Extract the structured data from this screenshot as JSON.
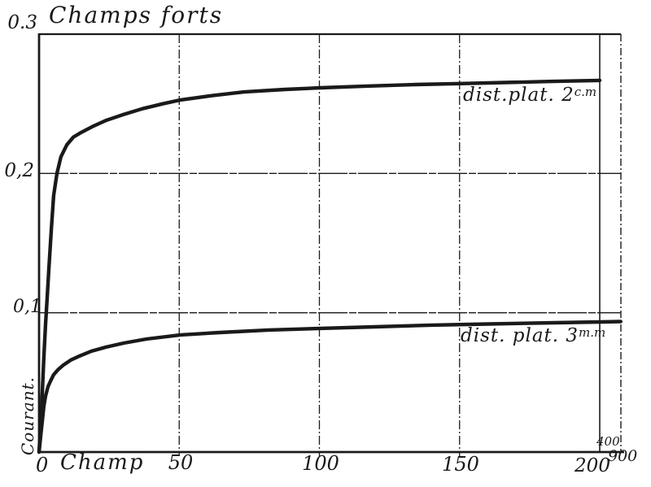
{
  "chart_data": {
    "type": "line",
    "title": "Champs forts",
    "xlabel": "Champ",
    "ylabel": "Courant.",
    "xlim": [
      0,
      207.5
    ],
    "ylim": [
      0,
      0.3
    ],
    "grid": true,
    "legend_position": "labels-on-curves",
    "x_gridlines": [
      50,
      100,
      150,
      200
    ],
    "y_gridlines": [
      0.1,
      0.2
    ],
    "x_ticks": [
      {
        "value": 0,
        "label": "0"
      },
      {
        "value": 50,
        "label": "50"
      },
      {
        "value": 100,
        "label": "100"
      },
      {
        "value": 150,
        "label": "150"
      },
      {
        "value": 200,
        "label": "200"
      }
    ],
    "x_break_labels": [
      {
        "label": "400"
      },
      {
        "label": "900"
      }
    ],
    "y_ticks": [
      {
        "value": 0.1,
        "label": "0,1"
      },
      {
        "value": 0.2,
        "label": "0,2"
      },
      {
        "value": 0.3,
        "label": "0.3"
      }
    ],
    "ink_color": "#1a1a1a",
    "series": [
      {
        "name": "dist.plat. 2 c.m",
        "label": "dist.plat. 2",
        "label_sup": "c.m",
        "points": [
          [
            0,
            0
          ],
          [
            0.6,
            0.021
          ],
          [
            1.2,
            0.044
          ],
          [
            1.7,
            0.068
          ],
          [
            2.3,
            0.091
          ],
          [
            2.9,
            0.111
          ],
          [
            3.5,
            0.132
          ],
          [
            4.4,
            0.161
          ],
          [
            5.2,
            0.184
          ],
          [
            6.4,
            0.2
          ],
          [
            7.8,
            0.212
          ],
          [
            9.9,
            0.2205
          ],
          [
            12.2,
            0.226
          ],
          [
            15.1,
            0.2295
          ],
          [
            19.4,
            0.234
          ],
          [
            23.8,
            0.238
          ],
          [
            29.6,
            0.242
          ],
          [
            36.9,
            0.2465
          ],
          [
            44.1,
            0.25
          ],
          [
            50.5,
            0.2528
          ],
          [
            61.5,
            0.2558
          ],
          [
            73.1,
            0.2585
          ],
          [
            87.7,
            0.2603
          ],
          [
            100.4,
            0.2615
          ],
          [
            116.7,
            0.2627
          ],
          [
            134.1,
            0.2638
          ],
          [
            150.4,
            0.2645
          ],
          [
            166,
            0.2653
          ],
          [
            183.4,
            0.2661
          ],
          [
            200,
            0.2668
          ]
        ]
      },
      {
        "name": "dist. plat. 3 m.m",
        "label": "dist. plat. 3",
        "label_sup": "m.m",
        "points": [
          [
            0,
            0
          ],
          [
            0.6,
            0.012
          ],
          [
            1.2,
            0.023
          ],
          [
            1.7,
            0.033
          ],
          [
            2.3,
            0.04
          ],
          [
            3.2,
            0.047
          ],
          [
            4.1,
            0.051
          ],
          [
            5.2,
            0.0555
          ],
          [
            6.7,
            0.059
          ],
          [
            8.7,
            0.0625
          ],
          [
            11.3,
            0.066
          ],
          [
            14.5,
            0.069
          ],
          [
            18.6,
            0.0724
          ],
          [
            23.8,
            0.0753
          ],
          [
            30.2,
            0.0782
          ],
          [
            38.3,
            0.0811
          ],
          [
            50.5,
            0.0841
          ],
          [
            64.4,
            0.0858
          ],
          [
            81.9,
            0.0876
          ],
          [
            100.4,
            0.0888
          ],
          [
            119.6,
            0.0899
          ],
          [
            139.9,
            0.0911
          ],
          [
            160.2,
            0.0919
          ],
          [
            183.4,
            0.0928
          ],
          [
            200,
            0.0934
          ],
          [
            207.5,
            0.0937
          ]
        ]
      }
    ]
  }
}
